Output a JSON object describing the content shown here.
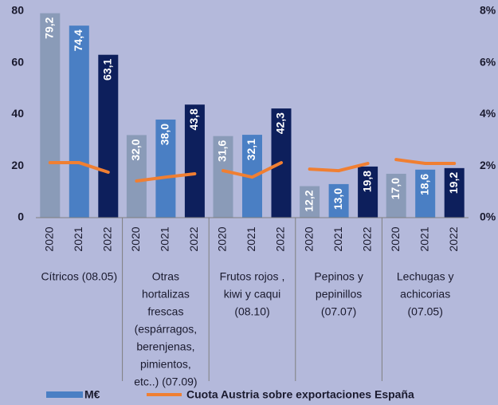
{
  "chart_data": {
    "type": "bar_line",
    "groups": [
      {
        "label": [
          "Cítricos (08.05)"
        ],
        "categories": [
          "2020",
          "2021",
          "2022"
        ]
      },
      {
        "label": [
          "Otras",
          "hortalizas",
          "frescas",
          "(espárragos,",
          "berenjenas,",
          "pimientos,",
          "etc..) (07.09)"
        ],
        "categories": [
          "2020",
          "2021",
          "2022"
        ]
      },
      {
        "label": [
          "Frutos rojos ,",
          "kiwi  y caqui",
          "(08.10)"
        ],
        "categories": [
          "2020",
          "2021",
          "2022"
        ]
      },
      {
        "label": [
          "Pepinos y",
          "pepinillos",
          "(07.07)"
        ],
        "categories": [
          "2020",
          "2021",
          "2022"
        ]
      },
      {
        "label": [
          "Lechugas y",
          "achicorias",
          "(07.05)"
        ],
        "categories": [
          "2020",
          "2021",
          "2022"
        ]
      }
    ],
    "series": [
      {
        "name": "M€",
        "type": "bar",
        "color": "#4a7fc4",
        "colors": [
          "#8a9bb8",
          "#4a7fc4",
          "#0d1f5c"
        ],
        "values": [
          [
            79.2,
            74.4,
            63.1
          ],
          [
            32.0,
            38.0,
            43.8
          ],
          [
            31.6,
            32.1,
            42.3
          ],
          [
            12.2,
            13.0,
            19.8
          ],
          [
            17.0,
            18.6,
            19.2
          ]
        ],
        "value_labels": [
          [
            "79,2",
            "74,4",
            "63,1"
          ],
          [
            "32,0",
            "38,0",
            "43,8"
          ],
          [
            "31,6",
            "32,1",
            "42,3"
          ],
          [
            "12,2",
            "13,0",
            "19,8"
          ],
          [
            "17,0",
            "18,6",
            "19,2"
          ]
        ]
      },
      {
        "name": "Cuota Austria sobre exportaciones España",
        "type": "line",
        "axis": "y2",
        "color": "#f07f32",
        "values": [
          [
            2.13,
            2.13,
            1.76
          ],
          [
            1.42,
            1.57,
            1.7
          ],
          [
            1.82,
            1.57,
            2.13
          ],
          [
            1.88,
            1.82,
            2.1
          ],
          [
            2.25,
            2.1,
            2.1
          ]
        ]
      }
    ],
    "ylim": [
      0,
      80
    ],
    "yticks": [
      0,
      20,
      40,
      60,
      80
    ],
    "y2lim": [
      0,
      8
    ],
    "y2ticks": [
      {
        "value": 0,
        "label": "0%"
      },
      {
        "value": 2,
        "label": "2%"
      },
      {
        "value": 4,
        "label": "4%"
      },
      {
        "value": 6,
        "label": "6%"
      },
      {
        "value": 8,
        "label": "8%"
      }
    ],
    "legend": "bottom"
  }
}
